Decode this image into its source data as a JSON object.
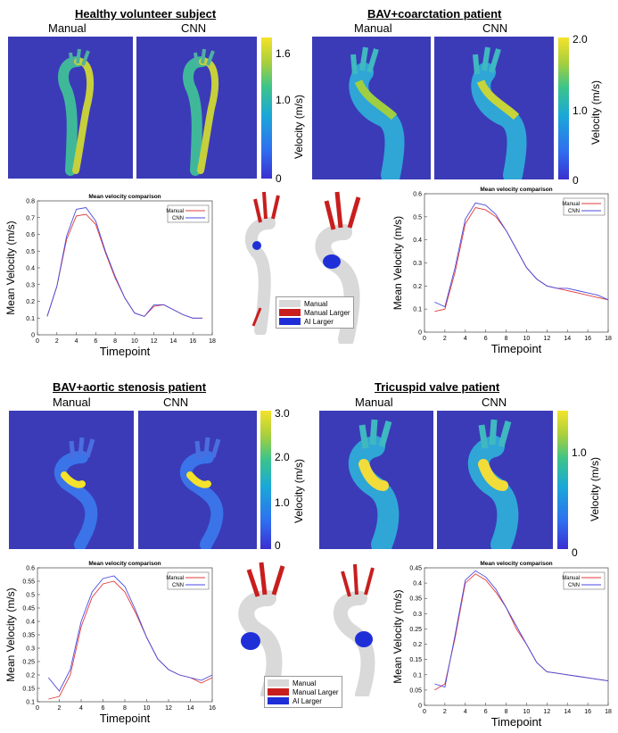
{
  "colors": {
    "manual": "#e23b3b",
    "cnn": "#4a4ae0",
    "map_bg": "#3b3bb8",
    "red3d": "#c81e1e",
    "blue3d": "#1f2fd8",
    "gray3d": "#d9d9d9"
  },
  "panels": [
    {
      "title": "Healthy volunteer subject",
      "map_left_label": "Manual",
      "map_right_label": "CNN",
      "colorbar": {
        "ticks": [
          "1.6",
          "1.0",
          "0"
        ],
        "unit": "Velocity (m/s)",
        "max": 1.8
      },
      "legend3d": null
    },
    {
      "title": "BAV+coarctation patient",
      "map_left_label": "Manual",
      "map_right_label": "CNN",
      "colorbar": {
        "ticks": [
          "2.0",
          "1.0",
          "0"
        ],
        "unit": "Velocity (m/s)",
        "max": 2.0
      },
      "legend3d": {
        "manual": "Manual",
        "manual_larger": "Manual Larger",
        "ai_larger": "AI Larger"
      }
    },
    {
      "title": "BAV+aortic stenosis patient",
      "map_left_label": "Manual",
      "map_right_label": "CNN",
      "colorbar": {
        "ticks": [
          "3.0",
          "2.0",
          "1.0",
          "0"
        ],
        "unit": "Velocity (m/s)",
        "max": 3.0
      },
      "legend3d": {
        "manual": "Manual",
        "manual_larger": "Manual Larger",
        "ai_larger": "AI Larger"
      }
    },
    {
      "title": "Tricuspid valve patient",
      "map_left_label": "Manual",
      "map_right_label": "CNN",
      "colorbar": {
        "ticks": [
          "1.0",
          "0"
        ],
        "unit": "Velocity (m/s)",
        "max": 1.4
      },
      "legend3d": null
    }
  ],
  "chart_data": [
    {
      "type": "line",
      "title": "Mean velocity comparison",
      "xlabel": "Timepoint",
      "ylabel": "Mean Velocity (m/s)",
      "xlim": [
        0,
        18
      ],
      "ylim": [
        0,
        0.8
      ],
      "xticks": [
        0,
        2,
        4,
        6,
        8,
        10,
        12,
        14,
        16,
        18
      ],
      "yticks": [
        0,
        0.1,
        0.2,
        0.3,
        0.4,
        0.5,
        0.6,
        0.7,
        0.8
      ],
      "x": [
        1,
        2,
        3,
        4,
        5,
        6,
        7,
        8,
        9,
        10,
        11,
        12,
        13,
        14,
        15,
        16,
        17
      ],
      "series": [
        {
          "name": "Manual",
          "values": [
            0.11,
            0.29,
            0.57,
            0.71,
            0.72,
            0.66,
            0.49,
            0.34,
            0.22,
            0.13,
            0.11,
            0.17,
            0.18,
            0.15,
            0.12,
            0.1,
            0.1
          ]
        },
        {
          "name": "CNN",
          "values": [
            0.11,
            0.29,
            0.59,
            0.75,
            0.76,
            0.68,
            0.5,
            0.35,
            0.22,
            0.13,
            0.11,
            0.18,
            0.18,
            0.15,
            0.12,
            0.1,
            0.1
          ]
        }
      ],
      "legend": [
        "Manual",
        "CNN"
      ]
    },
    {
      "type": "line",
      "title": "Mean velocity comparison",
      "xlabel": "Timepoint",
      "ylabel": "Mean Velocity (m/s)",
      "xlim": [
        0,
        18
      ],
      "ylim": [
        0,
        0.6
      ],
      "xticks": [
        0,
        2,
        4,
        6,
        8,
        10,
        12,
        14,
        16,
        18
      ],
      "yticks": [
        0,
        0.1,
        0.2,
        0.3,
        0.4,
        0.5,
        0.6
      ],
      "x": [
        1,
        2,
        3,
        4,
        5,
        6,
        7,
        8,
        9,
        10,
        11,
        12,
        13,
        14,
        15,
        16,
        17,
        18
      ],
      "series": [
        {
          "name": "Manual",
          "values": [
            0.09,
            0.1,
            0.26,
            0.47,
            0.54,
            0.53,
            0.5,
            0.44,
            0.36,
            0.28,
            0.23,
            0.2,
            0.19,
            0.18,
            0.17,
            0.16,
            0.15,
            0.14
          ]
        },
        {
          "name": "CNN",
          "values": [
            0.13,
            0.11,
            0.28,
            0.49,
            0.56,
            0.55,
            0.51,
            0.44,
            0.36,
            0.28,
            0.23,
            0.2,
            0.19,
            0.19,
            0.18,
            0.17,
            0.16,
            0.14
          ]
        }
      ],
      "legend": [
        "Manual",
        "CNN"
      ]
    },
    {
      "type": "line",
      "title": "Mean velocity comparison",
      "xlabel": "Timepoint",
      "ylabel": "Mean Velocity (m/s)",
      "xlim": [
        0,
        16
      ],
      "ylim": [
        0.1,
        0.6
      ],
      "xticks": [
        0,
        2,
        4,
        6,
        8,
        10,
        12,
        14,
        16
      ],
      "yticks": [
        0.1,
        0.15,
        0.2,
        0.25,
        0.3,
        0.35,
        0.4,
        0.45,
        0.5,
        0.55,
        0.6
      ],
      "x": [
        1,
        2,
        3,
        4,
        5,
        6,
        7,
        8,
        9,
        10,
        11,
        12,
        13,
        14,
        15,
        16
      ],
      "series": [
        {
          "name": "Manual",
          "values": [
            0.11,
            0.12,
            0.2,
            0.38,
            0.49,
            0.54,
            0.55,
            0.51,
            0.43,
            0.34,
            0.26,
            0.22,
            0.2,
            0.19,
            0.17,
            0.19
          ]
        },
        {
          "name": "CNN",
          "values": [
            0.19,
            0.14,
            0.22,
            0.4,
            0.51,
            0.56,
            0.57,
            0.53,
            0.44,
            0.34,
            0.26,
            0.22,
            0.2,
            0.19,
            0.18,
            0.2
          ]
        }
      ],
      "legend": [
        "Manual",
        "CNN"
      ]
    },
    {
      "type": "line",
      "title": "Mean velocity comparison",
      "xlabel": "Timepoint",
      "ylabel": "Mean Velocity (m/s)",
      "xlim": [
        0,
        18
      ],
      "ylim": [
        0,
        0.45
      ],
      "xticks": [
        0,
        2,
        4,
        6,
        8,
        10,
        12,
        14,
        16,
        18
      ],
      "yticks": [
        0,
        0.05,
        0.1,
        0.15,
        0.2,
        0.25,
        0.3,
        0.35,
        0.4,
        0.45
      ],
      "x": [
        1,
        2,
        3,
        4,
        5,
        6,
        7,
        8,
        9,
        10,
        11,
        12,
        13,
        14,
        15,
        16,
        17,
        18
      ],
      "series": [
        {
          "name": "Manual",
          "values": [
            0.05,
            0.07,
            0.22,
            0.4,
            0.43,
            0.41,
            0.37,
            0.32,
            0.25,
            0.2,
            0.14,
            0.11,
            0.105,
            0.1,
            0.095,
            0.09,
            0.085,
            0.08
          ]
        },
        {
          "name": "CNN",
          "values": [
            0.07,
            0.06,
            0.23,
            0.41,
            0.44,
            0.42,
            0.38,
            0.32,
            0.26,
            0.2,
            0.14,
            0.11,
            0.105,
            0.1,
            0.095,
            0.09,
            0.085,
            0.08
          ]
        }
      ],
      "legend": [
        "Manual",
        "CNN"
      ]
    }
  ]
}
